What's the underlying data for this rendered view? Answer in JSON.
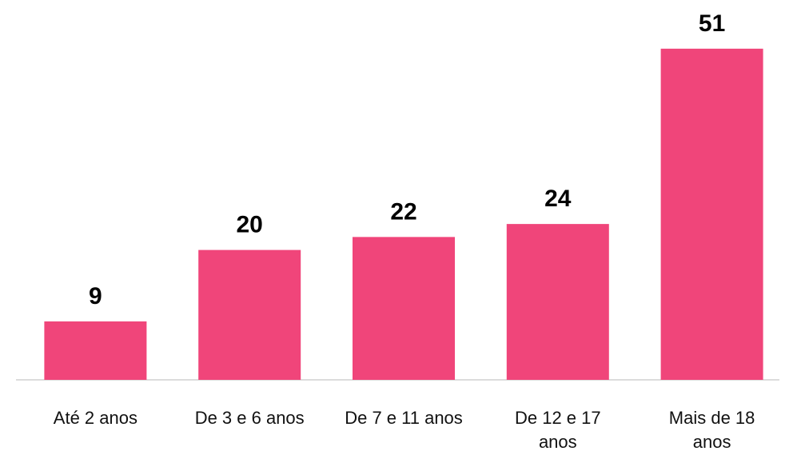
{
  "chart_data": {
    "type": "bar",
    "categories": [
      "Até 2 anos",
      "De 3 e 6 anos",
      "De 7 e 11 anos",
      "De 12 e 17 anos",
      "Mais de 18 anos"
    ],
    "values": [
      9,
      20,
      22,
      24,
      51
    ],
    "color": "#f0457a"
  }
}
